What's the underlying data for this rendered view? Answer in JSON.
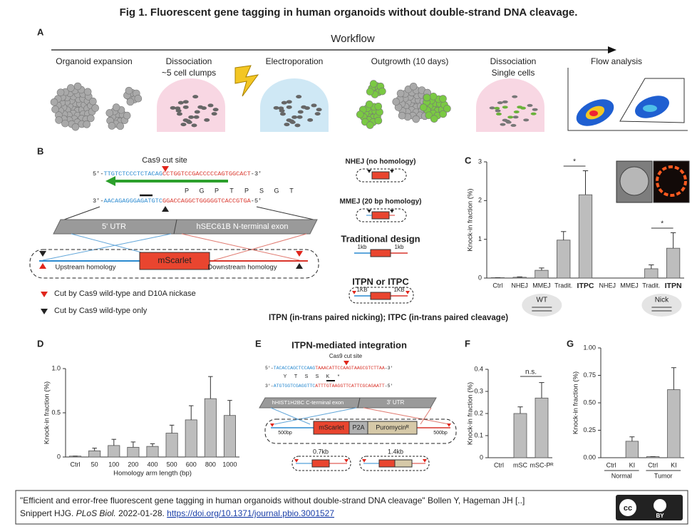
{
  "title": "Fig 1. Fluorescent gene tagging in human organoids without double-strand DNA cleavage.",
  "panel_a": {
    "letter": "A",
    "workflow": "Workflow",
    "steps": [
      [
        "Organoid expansion"
      ],
      [
        "Dissociation",
        "~5 cell clumps"
      ],
      [
        "Electroporation"
      ],
      [
        "Outgrowth (10 days)"
      ],
      [
        "Dissociation",
        "Single cells"
      ],
      [
        "Flow analysis"
      ]
    ]
  },
  "panel_b": {
    "letter": "B",
    "cut_site": "Cas9 cut site",
    "seq1": [
      "5'-",
      "TTGTCTCCCTCTACAG",
      "CCTGGTCCGACCCCCAGTGGCACT",
      "-3'"
    ],
    "aa": [
      "P",
      "G",
      "P",
      "T",
      "P",
      "S",
      "G",
      "T"
    ],
    "seq2": [
      "3'-",
      "AACAGAGGGAGATGTC",
      "GGACCAGGCTGGGGGTCACCGTGA",
      "-5'"
    ],
    "utr": "5' UTR",
    "exon": "hSEC61B N-terminal exon",
    "insert": "mScarlet",
    "up": "Upstream homology",
    "down": "Downstream homology",
    "legend": [
      "Cut by Cas9 wild-type and D10A nickase",
      "Cut by Cas9 wild-type only"
    ],
    "designs": [
      {
        "name": "NHEJ (no homology)"
      },
      {
        "name": "MMEJ (20 bp homology)"
      },
      {
        "name": "Traditional design",
        "arm": "1kb"
      },
      {
        "name": "ITPN or  ITPC",
        "arm": "1KB"
      }
    ],
    "footnote": "ITPN (in-trans paired nicking); ITPC (in-trans paired cleavage)"
  },
  "panel_e": {
    "letter": "E",
    "title": "ITPN-mediated integration",
    "cut_site": "Cas9 cut site",
    "seq1": [
      "5'-",
      "TACACCAGCTCCAAG",
      "TAAACATTCCAAGTAAGCGTCTTAA",
      "-3'"
    ],
    "aa": [
      "Y",
      "T",
      "S",
      "S",
      "K",
      "*"
    ],
    "seq2": [
      "3'-",
      "ATGTGGTCGAGGTTC",
      "ATTTGTAAGGTTCATTCGCAGAATT",
      "-5'"
    ],
    "exon": "hHIST1H2BC C-terminal exon",
    "utr": "3' UTR",
    "parts": [
      "mScarlet",
      "P2A",
      "Puromycinᴿ"
    ],
    "arm": "500bp",
    "products": [
      "0.7kb",
      "1.4kb"
    ]
  },
  "chart_data": [
    {
      "letter": "C",
      "type": "bar",
      "ylabel": "Knock-in fraction (%)",
      "color": "#bdbdbd",
      "categories": [
        "Ctrl",
        "NHEJ",
        "MMEJ",
        "Tradit.",
        "ITPC",
        "NHEJ",
        "MMEJ",
        "Tradit.",
        "ITPN"
      ],
      "values": [
        0.01,
        0.02,
        0.2,
        0.98,
        2.15,
        0.0,
        0.0,
        0.24,
        0.77
      ],
      "errors": [
        0.0,
        0.01,
        0.06,
        0.22,
        0.62,
        0.0,
        0.0,
        0.1,
        0.4
      ],
      "ylim": [
        0,
        3
      ],
      "yticks": [
        0,
        1,
        2,
        3
      ],
      "groups": [
        "WT",
        "Nick"
      ],
      "annotations": [
        "*",
        "*"
      ]
    },
    {
      "letter": "D",
      "type": "bar",
      "ylabel": "Knock-in fraction (%)",
      "xlabel": "Homology arm length (bp)",
      "color": "#bdbdbd",
      "categories": [
        "Ctrl",
        "50",
        "100",
        "200",
        "400",
        "500",
        "600",
        "800",
        "1000"
      ],
      "values": [
        0.01,
        0.07,
        0.13,
        0.11,
        0.12,
        0.27,
        0.42,
        0.66,
        0.47
      ],
      "errors": [
        0.0,
        0.03,
        0.07,
        0.06,
        0.03,
        0.09,
        0.16,
        0.25,
        0.17
      ],
      "ylim": [
        0,
        1
      ],
      "yticks": [
        0,
        0.5,
        {
          "value": 1,
          "label": "1.0"
        }
      ]
    },
    {
      "letter": "F",
      "type": "bar",
      "ylabel": "Knock-in fraction (%)",
      "color": "#bdbdbd",
      "categories": [
        "Ctrl",
        "mSC",
        "mSC-Pᴿ"
      ],
      "values": [
        0.0,
        0.2,
        0.27
      ],
      "errors": [
        0.0,
        0.03,
        0.07
      ],
      "ylim": [
        0,
        0.4
      ],
      "yticks": [
        0,
        0.1,
        0.2,
        0.3,
        0.4
      ],
      "annotations": [
        "n.s."
      ]
    },
    {
      "letter": "G",
      "type": "bar",
      "ylabel": "Knock-in fraction (%)",
      "color": "#bdbdbd",
      "categories": [
        "Ctrl",
        "KI",
        "Ctrl",
        "KI"
      ],
      "values": [
        0.0,
        0.15,
        0.01,
        0.62
      ],
      "errors": [
        0.0,
        0.04,
        0.0,
        0.2
      ],
      "ylim": [
        0,
        1
      ],
      "yticks": [
        {
          "value": 0,
          "label": "0.00"
        },
        {
          "value": 0.25,
          "label": "0.25"
        },
        {
          "value": 0.5,
          "label": "0.50"
        },
        {
          "value": 0.75,
          "label": "0.75"
        },
        {
          "value": 1,
          "label": "1.00"
        }
      ],
      "groups": [
        "Normal",
        "Tumor"
      ]
    }
  ],
  "footer": {
    "line1": "\"Efficient and error-free fluorescent gene tagging in human organoids without double-strand DNA cleavage\" Bollen Y,  Hageman JH [..]",
    "line2": "Snippert HJG.",
    "journal": "PLoS Biol.",
    "date": "2022-01-28.",
    "doi": "https://doi.org/10.1371/journal.pbio.3001527",
    "license": "BY"
  }
}
